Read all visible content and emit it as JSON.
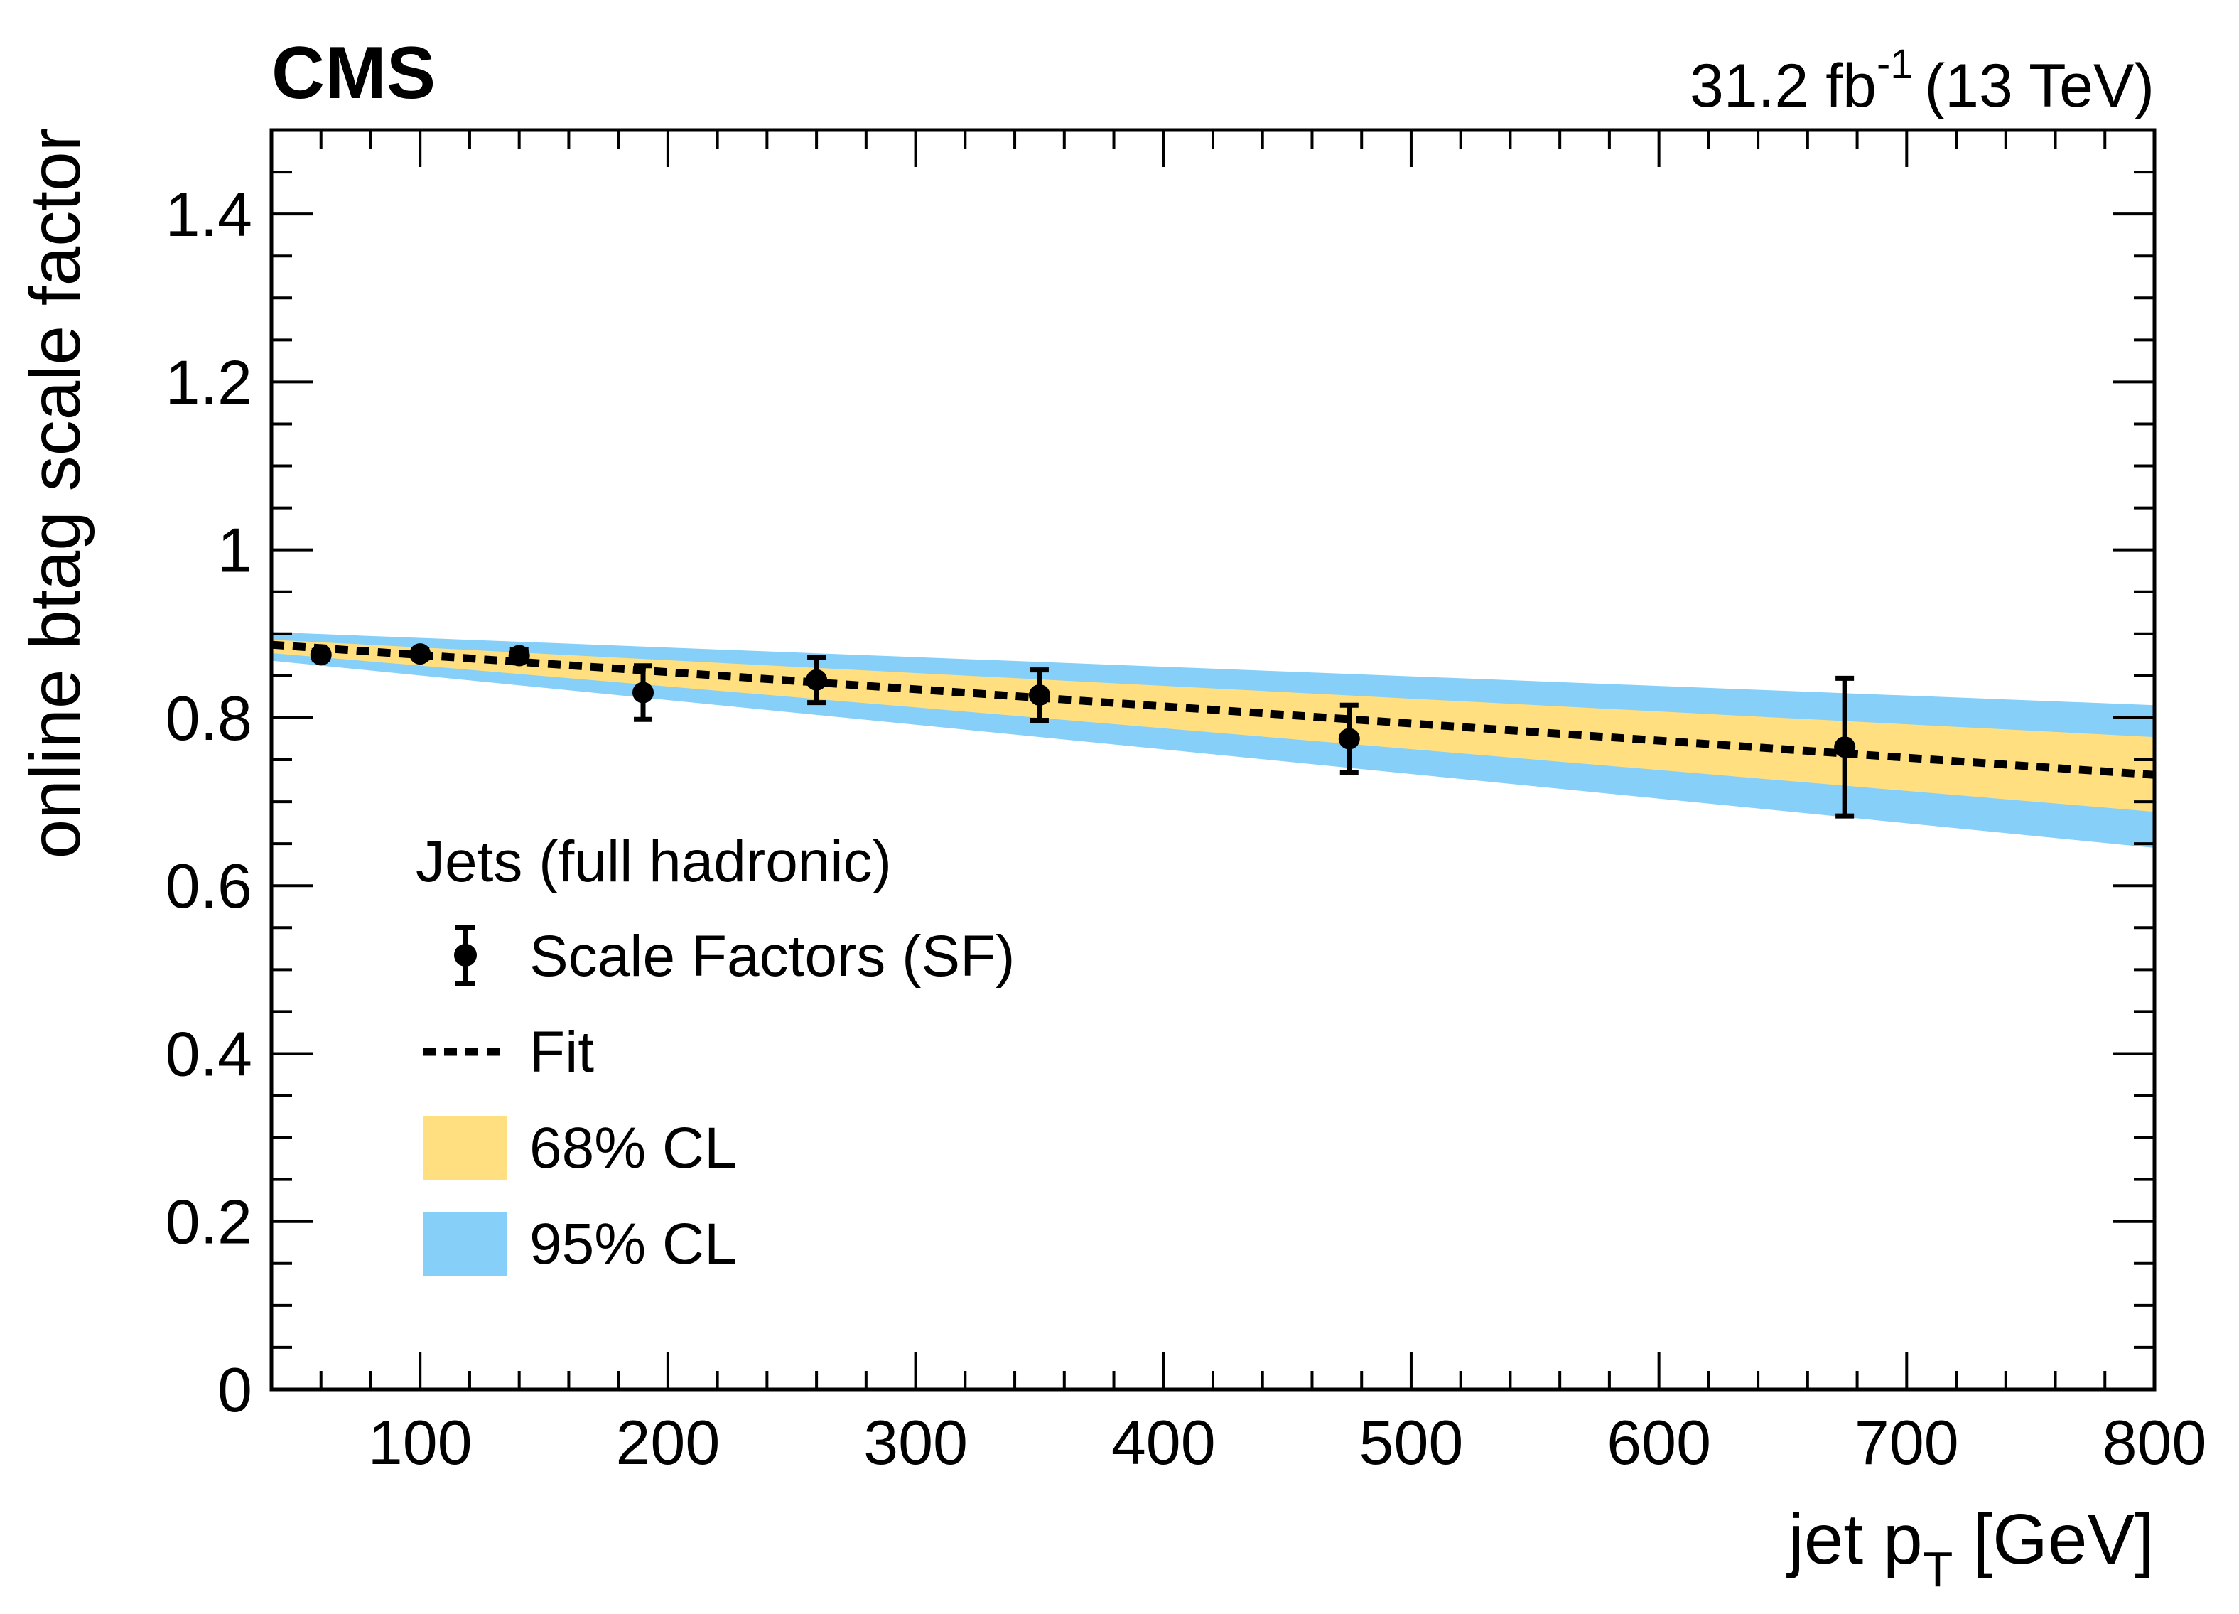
{
  "chart_data": {
    "type": "scatter",
    "experiment_label": "CMS",
    "lumi_value": "31.2 fb",
    "lumi_exponent": "-1",
    "lumi_energy": "(13 TeV)",
    "xlabel_main": "jet p",
    "xlabel_sub": "T",
    "xlabel_unit": "[GeV]",
    "ylabel": "online btag scale factor",
    "xlim": [
      40,
      800
    ],
    "ylim": [
      0,
      1.5
    ],
    "x_ticks": [
      100,
      200,
      300,
      400,
      500,
      600,
      700,
      800
    ],
    "x_tick_labels": [
      "100",
      "200",
      "300",
      "400",
      "500",
      "600",
      "700",
      "800"
    ],
    "y_ticks": [
      0,
      0.2,
      0.4,
      0.6,
      0.8,
      1.0,
      1.2,
      1.4
    ],
    "y_tick_labels": [
      "0",
      "0.2",
      "0.4",
      "0.6",
      "0.8",
      "1",
      "1.2",
      "1.4"
    ],
    "series": [
      {
        "name": "Scale Factors (SF)",
        "kind": "points",
        "x": [
          60,
          100,
          140,
          190,
          260,
          350,
          475,
          675
        ],
        "y": [
          0.875,
          0.876,
          0.874,
          0.83,
          0.845,
          0.827,
          0.775,
          0.765
        ],
        "yerr": [
          0.005,
          0.005,
          0.007,
          0.032,
          0.027,
          0.03,
          0.04,
          0.082
        ],
        "color": "#000000"
      },
      {
        "name": "Fit",
        "kind": "line",
        "style": "dotted",
        "x": [
          40,
          800
        ],
        "y": [
          0.887,
          0.732
        ],
        "color": "#000000"
      },
      {
        "name": "68% CL",
        "kind": "band",
        "x": [
          40,
          800
        ],
        "lower": [
          0.877,
          0.688
        ],
        "upper": [
          0.893,
          0.777
        ],
        "color": "#ffdf7f"
      },
      {
        "name": "95% CL",
        "kind": "band",
        "x": [
          40,
          800
        ],
        "lower": [
          0.868,
          0.645
        ],
        "upper": [
          0.902,
          0.815
        ],
        "color": "#85cff8"
      }
    ],
    "legend": {
      "title": "Jets (full hadronic)",
      "entries": [
        "Scale Factors (SF)",
        "Fit",
        "68% CL",
        "95% CL"
      ],
      "placement": "left-middle"
    }
  }
}
